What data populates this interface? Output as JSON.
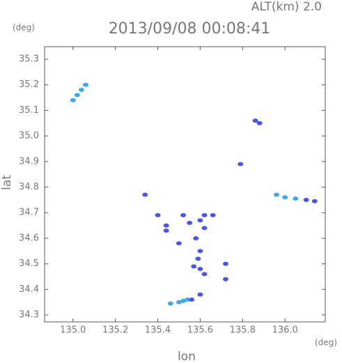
{
  "chart_data": {
    "type": "scatter",
    "title": "2013/09/08 00:08:41",
    "subtitle": "ALT(km) 2.0",
    "y_unit": "(deg)",
    "x_unit": "(deg)",
    "x_label": "lon",
    "y_label": "lat",
    "xlim": [
      134.866,
      136.19
    ],
    "ylim": [
      34.273,
      35.349
    ],
    "xticks": [
      {
        "value": 135,
        "label": "135.0"
      },
      135.2,
      135.4,
      135.6,
      135.8,
      {
        "value": 136,
        "label": "136.0"
      }
    ],
    "yticks": [
      35.3,
      35.2,
      35.1,
      {
        "value": 35,
        "label": "35.0"
      },
      34.9,
      34.8,
      34.7,
      34.6,
      34.5,
      34.4,
      34.3
    ],
    "series": [
      {
        "color": "#3fa9e8",
        "x": [
          135.0,
          135.02,
          135.04,
          135.06,
          135.96,
          136.0,
          136.05,
          135.46,
          135.5,
          135.52,
          135.54
        ],
        "values": [
          35.14,
          35.16,
          35.18,
          35.2,
          34.77,
          34.76,
          34.755,
          34.345,
          34.35,
          34.355,
          34.36
        ]
      },
      {
        "color": "#4a55e0",
        "x": [
          135.86,
          135.88,
          135.79,
          135.34,
          136.1,
          136.14,
          135.4,
          135.44,
          135.44,
          135.52,
          135.5,
          135.55,
          135.58,
          135.6,
          135.62,
          135.6,
          135.59,
          135.6,
          135.62,
          135.57,
          135.66,
          135.62,
          135.72,
          135.72,
          135.6,
          135.56
        ],
        "values": [
          35.06,
          35.05,
          34.89,
          34.77,
          34.75,
          34.745,
          34.69,
          34.65,
          34.63,
          34.69,
          34.58,
          34.66,
          34.6,
          34.67,
          34.64,
          34.55,
          34.52,
          34.48,
          34.46,
          34.49,
          34.69,
          34.69,
          34.5,
          34.44,
          34.38,
          34.36
        ]
      }
    ]
  }
}
